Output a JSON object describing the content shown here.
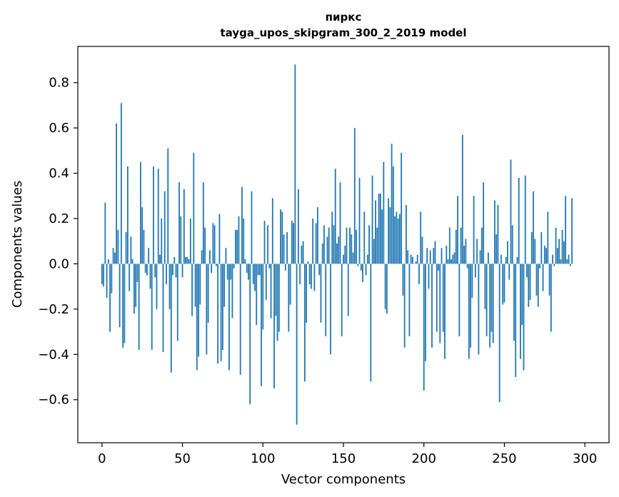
{
  "chart_data": {
    "type": "bar",
    "title_line1": "пиркс",
    "title_line2": "tayga_upos_skipgram_300_2_2019 model",
    "xlabel": "Vector components",
    "ylabel": "Components values",
    "xlim": [
      -15,
      315
    ],
    "ylim": [
      -0.79,
      0.96
    ],
    "x_ticks": [
      0,
      50,
      100,
      150,
      200,
      250,
      300
    ],
    "x_tick_labels": [
      "0",
      "50",
      "100",
      "150",
      "200",
      "250",
      "300"
    ],
    "y_ticks": [
      0.8,
      0.6,
      0.4,
      0.2,
      0.0,
      -0.2,
      -0.4,
      -0.6
    ],
    "y_tick_labels": [
      "0.8",
      "0.6",
      "0.4",
      "0.2",
      "0.0",
      "−0.2",
      "−0.4",
      "−0.6"
    ],
    "bar_color": "#1f77b4",
    "values": [
      -0.09,
      -0.1,
      0.27,
      -0.15,
      0.02,
      -0.3,
      -0.13,
      0.07,
      0.05,
      0.62,
      0.15,
      -0.28,
      0.71,
      -0.37,
      -0.35,
      0.14,
      0.43,
      -0.12,
      0.12,
      0.02,
      -0.22,
      -0.19,
      -0.08,
      -0.38,
      0.45,
      0.25,
      0.15,
      -0.04,
      -0.05,
      0.07,
      -0.11,
      -0.38,
      0.43,
      -0.06,
      -0.2,
      0.42,
      0.04,
      0.2,
      -0.39,
      0.32,
      -0.09,
      0.51,
      -0.2,
      -0.48,
      -0.05,
      0.03,
      -0.06,
      -0.34,
      0.36,
      0.21,
      -0.06,
      0.33,
      0.03,
      0.03,
      0.02,
      0.2,
      -0.23,
      0.49,
      -0.19,
      -0.47,
      -0.41,
      -0.18,
      0.06,
      0.36,
      0.16,
      -0.4,
      -0.26,
      0.06,
      -0.04,
      0.18,
      0.17,
      -0.01,
      -0.44,
      0.22,
      -0.43,
      -0.38,
      -0.19,
      0.07,
      -0.07,
      -0.47,
      -0.07,
      -0.24,
      -0.02,
      0.15,
      0.15,
      0.21,
      -0.49,
      0.34,
      0.2,
      0.02,
      -0.04,
      -0.07,
      -0.62,
      0.32,
      -0.09,
      -0.12,
      -0.27,
      -0.05,
      -0.05,
      -0.54,
      -0.29,
      0.19,
      -0.16,
      0.17,
      -0.02,
      -0.24,
      0.29,
      -0.55,
      -0.23,
      -0.34,
      -0.3,
      0.24,
      0.23,
      0.13,
      -0.03,
      0.14,
      -0.3,
      -0.18,
      0.19,
      0.18,
      0.88,
      -0.71,
      0.33,
      -0.09,
      0.08,
      0.1,
      -0.52,
      -0.26,
      0.01,
      -0.09,
      -0.11,
      0.2,
      -0.12,
      0.18,
      0.25,
      -0.05,
      -0.26,
      0.09,
      0.17,
      -0.32,
      0.12,
      0.16,
      -0.4,
      0.23,
      0.17,
      0.42,
      0.09,
      0.12,
      0.36,
      -0.32,
      0.04,
      0.08,
      0.16,
      -0.23,
      0.16,
      0.13,
      0.05,
      0.6,
      0.15,
      -0.01,
      0.38,
      -0.03,
      -0.08,
      0.23,
      -0.05,
      0.04,
      0.17,
      -0.52,
      0.39,
      0.11,
      0.28,
      0.16,
      0.31,
      0.31,
      0.24,
      0.45,
      -0.2,
      -0.22,
      0.29,
      0.25,
      0.53,
      0.43,
      0.21,
      0.23,
      0.2,
      0.22,
      0.49,
      -0.14,
      -0.37,
      0.26,
      0.06,
      -0.32,
      0.04,
      0.03,
      0.0,
      0.01,
      0.04,
      -0.09,
      0.23,
      0.12,
      -0.56,
      -0.43,
      0.07,
      -0.11,
      0.06,
      -0.37,
      0.07,
      0.1,
      -0.3,
      -0.03,
      -0.35,
      0.07,
      -0.3,
      -0.42,
      0.08,
      0.02,
      0.16,
      0.02,
      0.04,
      0.05,
      0.15,
      0.3,
      -0.32,
      0.16,
      0.57,
      0.08,
      0.11,
      -0.02,
      -0.42,
      -0.37,
      -0.15,
      0.3,
      -0.06,
      0.11,
      -0.4,
      0.06,
      0.16,
      0.36,
      -0.2,
      -0.32,
      0.05,
      -0.37,
      -0.3,
      -0.35,
      0.28,
      0.13,
      0.26,
      -0.61,
      0.04,
      -0.18,
      -0.17,
      0.03,
      0.1,
      -0.07,
      0.46,
      0.17,
      -0.34,
      -0.5,
      0.03,
      0.38,
      -0.42,
      -0.27,
      -0.47,
      0.39,
      -0.06,
      -0.19,
      -0.16,
      0.14,
      0.32,
      0.11,
      -0.14,
      -0.19,
      -0.02,
      0.14,
      -0.12,
      0.08,
      0.07,
      0.23,
      -0.14,
      -0.3,
      0.04,
      -0.01,
      0.16,
      0.07,
      0.11,
      0.02,
      0.15,
      0.1,
      0.3,
      0.02,
      0.04,
      -0.01,
      0.29
    ]
  }
}
